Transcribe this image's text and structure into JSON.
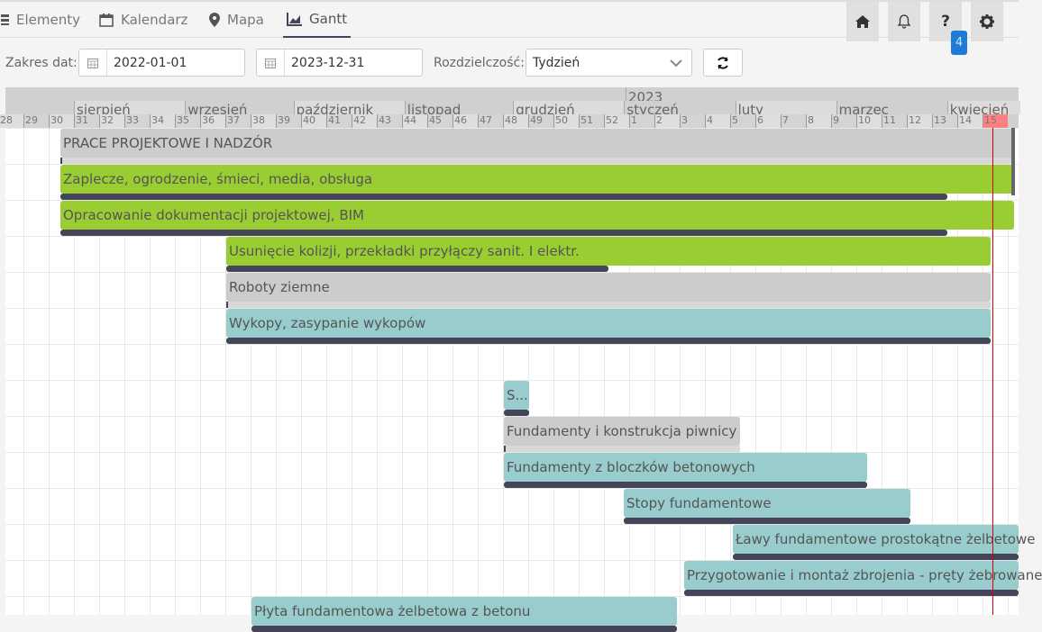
{
  "tabs": [
    {
      "label": "Elementy",
      "icon": "list-icon"
    },
    {
      "label": "Kalendarz",
      "icon": "calendar-icon"
    },
    {
      "label": "Mapa",
      "icon": "map-marker-icon"
    },
    {
      "label": "Gantt",
      "icon": "chart-icon",
      "active": true
    }
  ],
  "header_buttons": {
    "home": "home-icon",
    "notifications": "bell-icon",
    "help": "?",
    "settings": "gear-icon",
    "help_badge": "4"
  },
  "filters": {
    "date_range_label": "Zakres dat:",
    "date_from": "2022-01-01",
    "date_to": "2023-12-31",
    "resolution_label": "Rozdzielczość:",
    "resolution_value": "Tydzień"
  },
  "timeline": {
    "year": "2023",
    "months": [
      "sierpień",
      "wrzesień",
      "październik",
      "listopad",
      "grudzień",
      "styczeń",
      "luty",
      "marzec",
      "kwiecień"
    ],
    "weeks": [
      "28",
      "29",
      "30",
      "31",
      "32",
      "33",
      "34",
      "35",
      "36",
      "37",
      "38",
      "39",
      "40",
      "41",
      "42",
      "43",
      "44",
      "45",
      "46",
      "47",
      "48",
      "49",
      "50",
      "51",
      "52",
      "1",
      "2",
      "3",
      "4",
      "5",
      "6",
      "7",
      "8",
      "9",
      "10",
      "11",
      "12",
      "13",
      "14",
      "15"
    ],
    "current_week": "15"
  },
  "colors": {
    "green": "#9acd32",
    "teal": "#99cccc",
    "gray": "#cccccc",
    "progress": "#454559",
    "today": "#dd0000",
    "current_week": "#ff8080"
  },
  "tasks": [
    {
      "name": "PRACE PROJEKTOWE I NADZÓR",
      "color": "gray",
      "progress": 0
    },
    {
      "name": "Zaplecze, ogrodzenie, śmieci, media, obsługa",
      "color": "green",
      "progress": 0.93
    },
    {
      "name": "Opracowanie dokumentacji projektowej, BIM",
      "color": "green",
      "progress": 0.93
    },
    {
      "name": "Usunięcie kolizji, przekładki przyłączy sanit. I elektr.",
      "color": "green",
      "progress": 0.5
    },
    {
      "name": "Roboty ziemne",
      "color": "gray",
      "progress": 0
    },
    {
      "name": "Wykopy, zasypanie wykopów",
      "color": "teal",
      "progress": 1
    },
    {
      "name": "S...",
      "color": "teal",
      "progress": 1
    },
    {
      "name": "Fundamenty i konstrukcja piwnicy",
      "color": "gray",
      "progress": 0
    },
    {
      "name": "Fundamenty z bloczków betonowych",
      "color": "teal",
      "progress": 1
    },
    {
      "name": "Stopy fundamentowe",
      "color": "teal",
      "progress": 1
    },
    {
      "name": "Ławy fundamentowe prostokątne żelbetowe",
      "color": "teal",
      "progress": 1
    },
    {
      "name": "Przygotowanie i montaż zbrojenia - pręty żebrowane",
      "color": "teal",
      "progress": 1
    },
    {
      "name": "Płyta fundamentowa żelbetowa z betonu",
      "color": "teal",
      "progress": 1
    }
  ]
}
